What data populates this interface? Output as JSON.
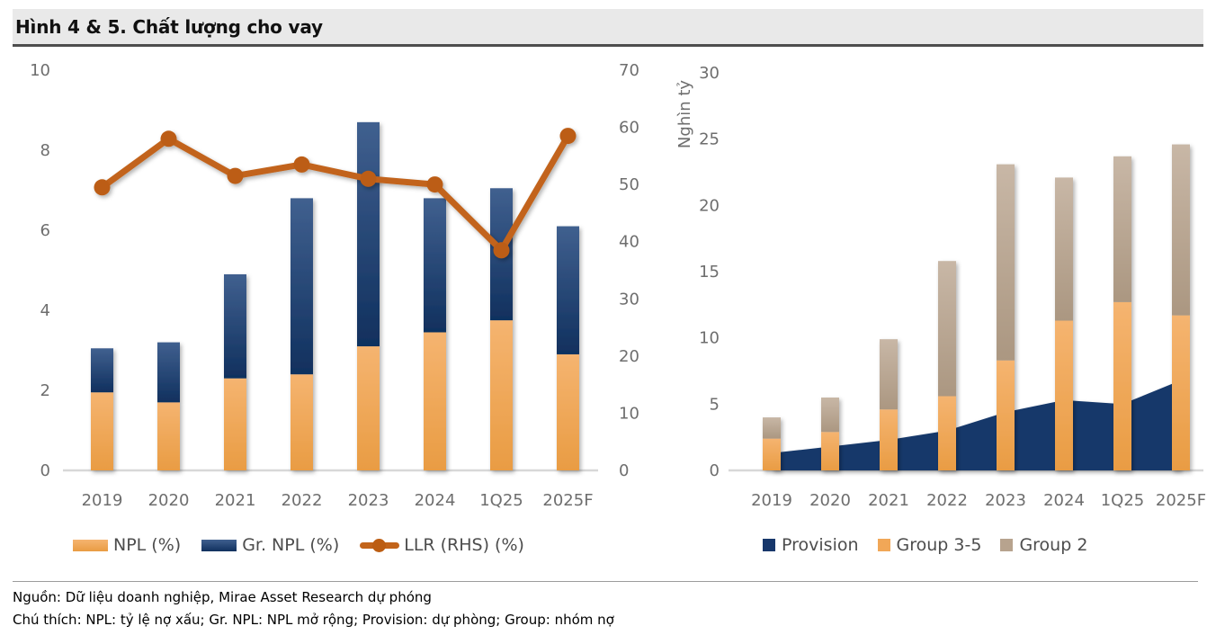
{
  "title": "Hình 4 & 5. Chất lượng cho vay",
  "footer": {
    "source": "Nguồn: Dữ liệu doanh nghiệp, Mirae Asset Research dự phóng",
    "note": "Chú thích: NPL: tỷ lệ nợ xấu; Gr. NPL: NPL mở rộng; Provision: dự phòng; Group: nhóm nợ"
  },
  "colors": {
    "npl_top": "#F5B470",
    "npl_bottom": "#E99C43",
    "grnpl_top": "#40608F",
    "grnpl_bottom": "#10305E",
    "tan_top": "#C8B7A6",
    "tan_bottom": "#AB9781",
    "provision_fill": "#16396B",
    "llr_line": "#C2641A",
    "llr_marker": "#BC5D12",
    "legend_provision": "#17376B",
    "legend_group35": "#F1A757",
    "legend_group2": "#B7A38E",
    "axis_text": "#6E6E6E",
    "legend_text": "#4D4D4D",
    "baseline": "#D8D8D8",
    "title_bg": "#E9E9E9",
    "title_underline": "#4D4D4D",
    "footer_rule": "#9D9D9D"
  },
  "chart_data": [
    {
      "type": "bar",
      "subtype": "stacked-bars-with-line",
      "title": "Chất lượng cho vay (tỷ lệ %)",
      "categories": [
        "2019",
        "2020",
        "2021",
        "2022",
        "2023",
        "2024",
        "1Q25",
        "2025F"
      ],
      "stacked": true,
      "grid": false,
      "legend_position": "bottom",
      "left_axis": {
        "min": 0,
        "max": 10,
        "ticks": [
          0,
          2,
          4,
          6,
          8,
          10
        ]
      },
      "right_axis": {
        "min": 0,
        "max": 70,
        "ticks": [
          0,
          10,
          20,
          30,
          40,
          50,
          60,
          70
        ]
      },
      "series": [
        {
          "name": "NPL (%)",
          "type": "bar",
          "axis": "left",
          "values": [
            1.95,
            1.7,
            2.3,
            2.4,
            3.1,
            3.45,
            3.75,
            2.9
          ]
        },
        {
          "name": "Gr. NPL (%)",
          "type": "bar",
          "axis": "left",
          "values": [
            1.1,
            1.5,
            2.6,
            4.4,
            5.6,
            3.35,
            3.3,
            3.2
          ]
        },
        {
          "name": "LLR (RHS) (%)",
          "type": "line",
          "axis": "right",
          "values": [
            49.5,
            58,
            51.5,
            53.5,
            51,
            50,
            38.5,
            58.5
          ]
        }
      ]
    },
    {
      "type": "bar",
      "subtype": "stacked-bars-with-area",
      "title": "Dự phòng và nhóm nợ",
      "categories": [
        "2019",
        "2020",
        "2021",
        "2022",
        "2023",
        "2024",
        "1Q25",
        "2025F"
      ],
      "stacked": true,
      "grid": false,
      "legend_position": "bottom",
      "ylabel": "Nghìn tỷ",
      "y_axis": {
        "min": 0,
        "max": 30,
        "ticks": [
          0,
          5,
          10,
          15,
          20,
          25,
          30
        ]
      },
      "series": [
        {
          "name": "Provision",
          "type": "area",
          "values": [
            1.3,
            1.8,
            2.3,
            3.0,
            4.4,
            5.3,
            5.0,
            6.8
          ]
        },
        {
          "name": "Group 3-5",
          "type": "bar",
          "values": [
            2.4,
            2.9,
            4.6,
            5.6,
            8.3,
            11.3,
            12.7,
            11.7
          ]
        },
        {
          "name": "Group 2",
          "type": "bar",
          "values": [
            1.6,
            2.6,
            5.3,
            10.2,
            14.8,
            10.8,
            11.0,
            12.9
          ]
        }
      ]
    }
  ]
}
